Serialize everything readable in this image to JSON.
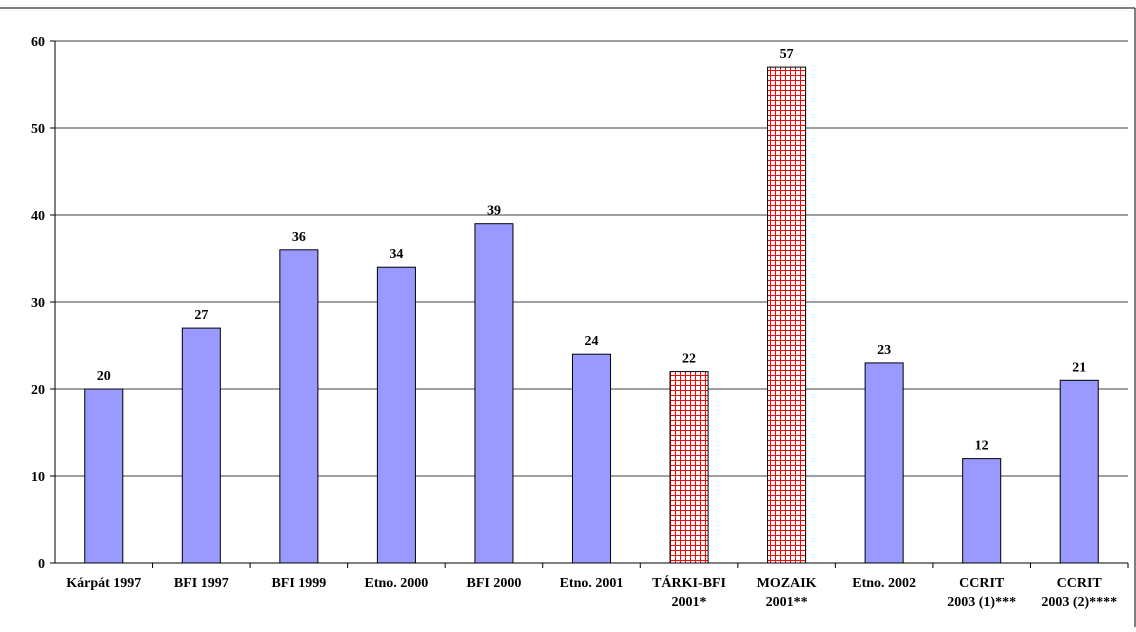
{
  "chart_data": {
    "type": "bar",
    "categories": [
      [
        "Kárpát 1997"
      ],
      [
        "BFI 1997"
      ],
      [
        "BFI 1999"
      ],
      [
        "Etno. 2000"
      ],
      [
        "BFI 2000"
      ],
      [
        "Etno. 2001"
      ],
      [
        "TÁRKI-BFI",
        "2001*"
      ],
      [
        "MOZAIK",
        "2001**"
      ],
      [
        "Etno. 2002"
      ],
      [
        "CCRIT",
        "2003 (1)***"
      ],
      [
        "CCRIT",
        "2003 (2)****"
      ]
    ],
    "values": [
      20,
      27,
      36,
      34,
      39,
      24,
      22,
      57,
      23,
      12,
      21
    ],
    "patterned": [
      false,
      false,
      false,
      false,
      false,
      false,
      true,
      true,
      false,
      false,
      false
    ],
    "ylim": [
      0,
      60
    ],
    "yticks": [
      0,
      10,
      20,
      30,
      40,
      50,
      60
    ],
    "grid": true,
    "title": "",
    "xlabel": "",
    "ylabel": "",
    "colors": {
      "bar_fill": "#9999ff",
      "bar_stroke": "#000000",
      "pattern_line": "#ff0000",
      "pattern_bg": "#ffffff",
      "grid": "#000000"
    }
  }
}
